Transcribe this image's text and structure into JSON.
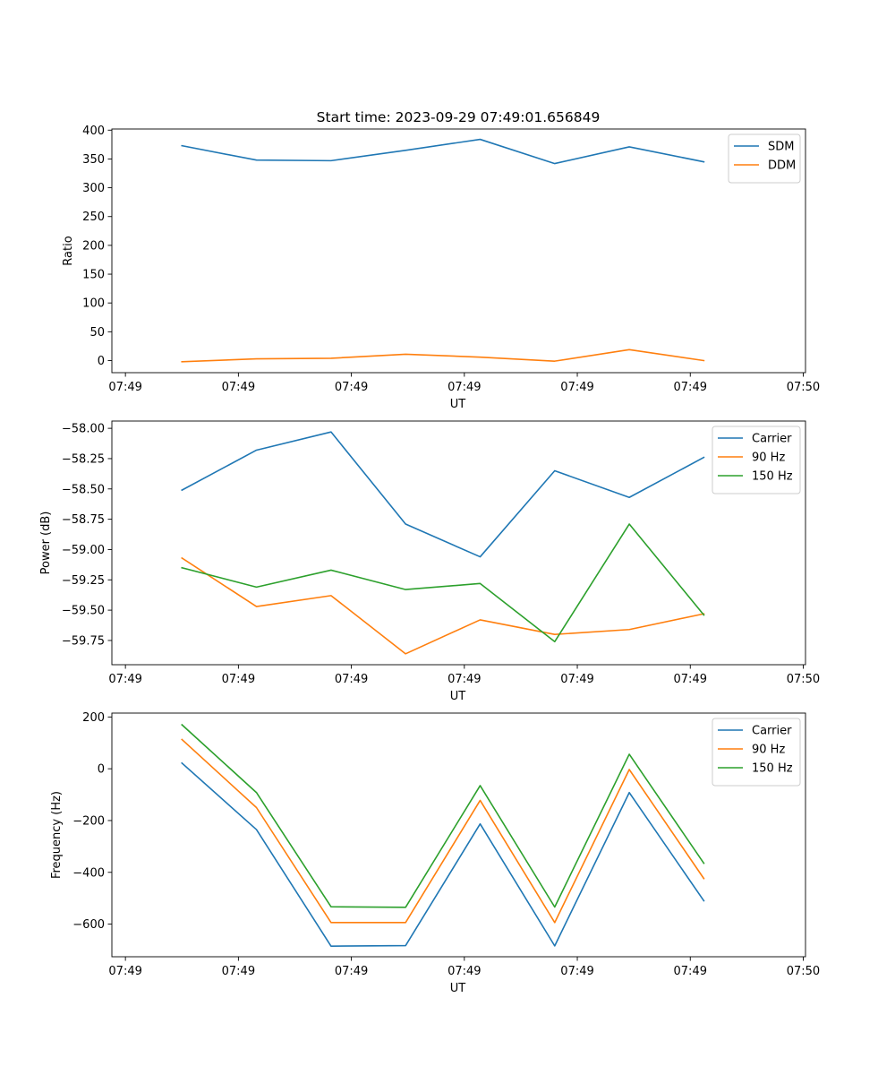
{
  "figure": {
    "title": "Start time: 2023-09-29 07:49:01.656849"
  },
  "colors": {
    "blue": "#1f77b4",
    "orange": "#ff7f0e",
    "green": "#2ca02c"
  },
  "chart_data": [
    {
      "type": "line",
      "title": "Start time: 2023-09-29 07:49:01.656849",
      "xlabel": "UT",
      "ylabel": "Ratio",
      "x_ticks": [
        "07:49",
        "07:49",
        "07:49",
        "07:49",
        "07:49",
        "07:49",
        "07:50"
      ],
      "x": [
        0.5,
        1.16,
        1.82,
        2.48,
        3.14,
        3.8,
        4.46,
        5.12
      ],
      "xlim": [
        -0.12,
        6.02
      ],
      "x_tick_positions": [
        0,
        1,
        2,
        3,
        4,
        5,
        6
      ],
      "ylim": [
        -21,
        402
      ],
      "y_ticks": [
        "0",
        "50",
        "100",
        "150",
        "200",
        "250",
        "300",
        "350",
        "400"
      ],
      "y_tick_values": [
        0,
        50,
        100,
        150,
        200,
        250,
        300,
        350,
        400
      ],
      "legend": "top-right",
      "series": [
        {
          "name": "SDM",
          "color": "blue",
          "values": [
            373,
            348,
            347,
            365,
            384,
            342,
            371,
            345
          ]
        },
        {
          "name": "DDM",
          "color": "orange",
          "values": [
            -2,
            3,
            4,
            11,
            6,
            -1,
            19,
            0
          ]
        }
      ]
    },
    {
      "type": "line",
      "xlabel": "UT",
      "ylabel": "Power (dB)",
      "x_ticks": [
        "07:49",
        "07:49",
        "07:49",
        "07:49",
        "07:49",
        "07:49",
        "07:50"
      ],
      "x": [
        0.5,
        1.16,
        1.82,
        2.48,
        3.14,
        3.8,
        4.46,
        5.12
      ],
      "xlim": [
        -0.12,
        6.02
      ],
      "x_tick_positions": [
        0,
        1,
        2,
        3,
        4,
        5,
        6
      ],
      "ylim": [
        -59.95,
        -57.94
      ],
      "y_ticks": [
        "−58.00",
        "−58.25",
        "−58.50",
        "−58.75",
        "−59.00",
        "−59.25",
        "−59.50",
        "−59.75"
      ],
      "y_tick_values": [
        -58.0,
        -58.25,
        -58.5,
        -58.75,
        -59.0,
        -59.25,
        -59.5,
        -59.75
      ],
      "legend": "top-right",
      "series": [
        {
          "name": "Carrier",
          "color": "blue",
          "values": [
            -58.51,
            -58.18,
            -58.03,
            -58.79,
            -59.06,
            -58.35,
            -58.57,
            -58.24
          ]
        },
        {
          "name": "90 Hz",
          "color": "orange",
          "values": [
            -59.07,
            -59.47,
            -59.38,
            -59.86,
            -59.58,
            -59.7,
            -59.66,
            -59.53
          ]
        },
        {
          "name": "150 Hz",
          "color": "green",
          "values": [
            -59.15,
            -59.31,
            -59.17,
            -59.33,
            -59.28,
            -59.76,
            -58.79,
            -59.54
          ]
        }
      ]
    },
    {
      "type": "line",
      "xlabel": "UT",
      "ylabel": "Frequency (Hz)",
      "x_ticks": [
        "07:49",
        "07:49",
        "07:49",
        "07:49",
        "07:49",
        "07:49",
        "07:50"
      ],
      "x": [
        0.5,
        1.16,
        1.82,
        2.48,
        3.14,
        3.8,
        4.46,
        5.12
      ],
      "xlim": [
        -0.12,
        6.02
      ],
      "x_tick_positions": [
        0,
        1,
        2,
        3,
        4,
        5,
        6
      ],
      "ylim": [
        -726,
        215
      ],
      "y_ticks": [
        "200",
        "0",
        "−200",
        "−400",
        "−600"
      ],
      "y_tick_values": [
        200,
        0,
        -200,
        -400,
        -600
      ],
      "legend": "top-right",
      "series": [
        {
          "name": "Carrier",
          "color": "blue",
          "values": [
            22,
            -235,
            -685,
            -683,
            -213,
            -684,
            -92,
            -510
          ]
        },
        {
          "name": "90 Hz",
          "color": "orange",
          "values": [
            113,
            -150,
            -594,
            -594,
            -122,
            -594,
            -3,
            -424
          ]
        },
        {
          "name": "150 Hz",
          "color": "green",
          "values": [
            170,
            -92,
            -533,
            -535,
            -65,
            -534,
            56,
            -365
          ]
        }
      ]
    }
  ]
}
